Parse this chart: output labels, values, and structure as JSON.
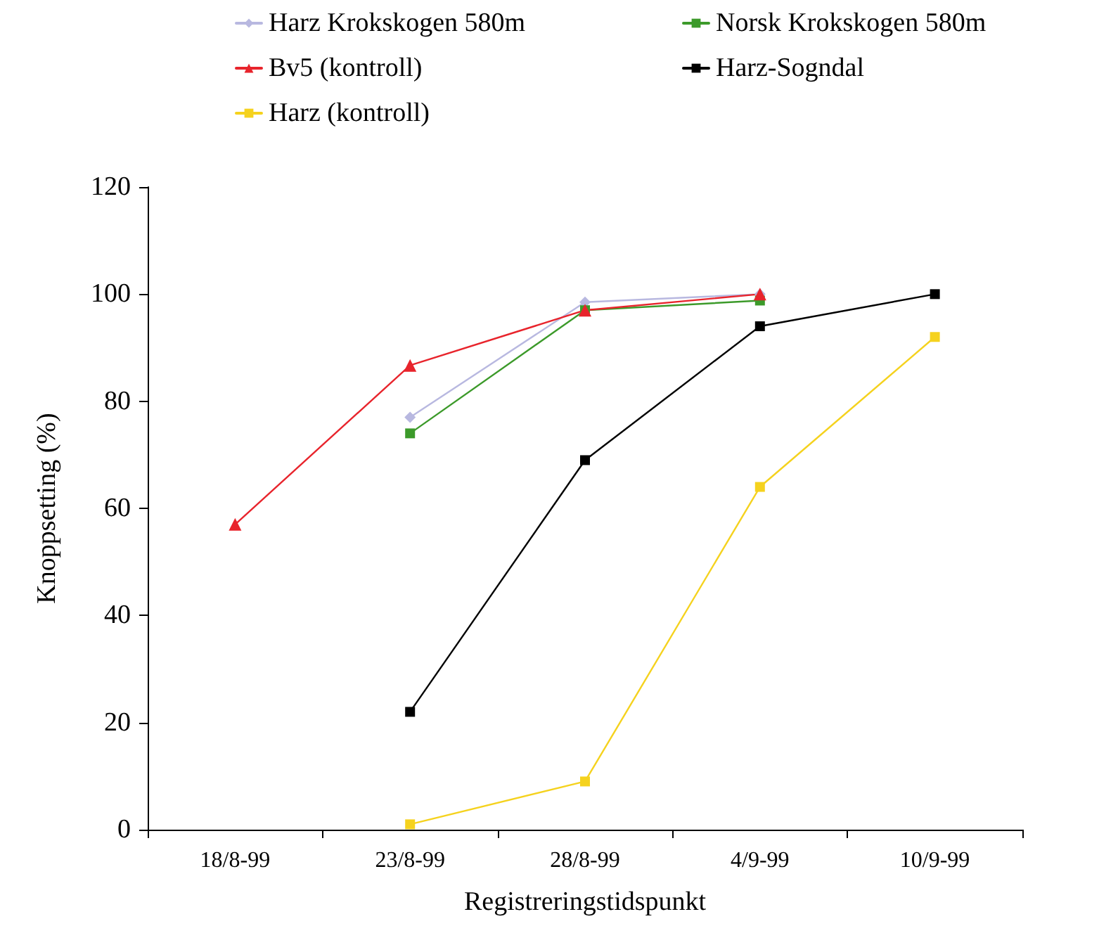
{
  "chart_data": {
    "type": "line",
    "xlabel": "Registreringstidspunkt",
    "ylabel": "Knoppsetting (%)",
    "categories": [
      "18/8-99",
      "23/8-99",
      "28/8-99",
      "4/9-99",
      "10/9-99"
    ],
    "ylim": [
      0,
      120
    ],
    "yticks": [
      0,
      20,
      40,
      60,
      80,
      100,
      120
    ],
    "grid": false,
    "legend": "top",
    "line_style": "solid",
    "series": [
      {
        "name": "Harz Krokskogen 580m",
        "color": "#b8b8e0",
        "marker": "diamond",
        "values": [
          null,
          77,
          98.5,
          100,
          null
        ]
      },
      {
        "name": "Norsk Krokskogen 580m",
        "color": "#3c9a2a",
        "marker": "square",
        "values": [
          null,
          74,
          97,
          98.8,
          null
        ]
      },
      {
        "name": "Bv5 (kontroll)",
        "color": "#e8242c",
        "marker": "triangle",
        "values": [
          57,
          86.7,
          97,
          100,
          null
        ]
      },
      {
        "name": "Harz-Sogndal",
        "color": "#000000",
        "marker": "square",
        "values": [
          null,
          22,
          69,
          94,
          100
        ]
      },
      {
        "name": "Harz (kontroll)",
        "color": "#f5d21e",
        "marker": "square",
        "values": [
          null,
          1,
          9,
          64,
          92
        ]
      }
    ]
  }
}
